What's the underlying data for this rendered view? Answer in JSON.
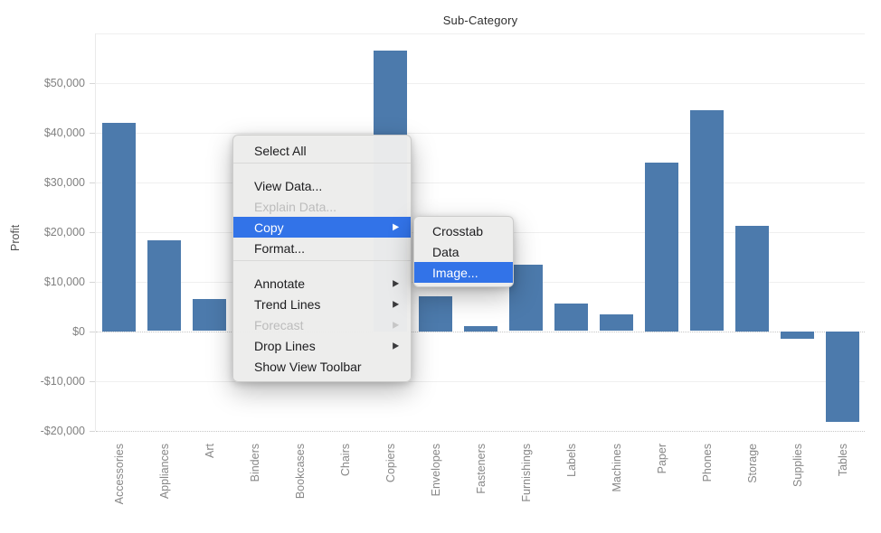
{
  "chart": {
    "title": "Sub-Category",
    "y_axis_label": "Profit",
    "bar_color": "#4c7aac",
    "y_tick_values": [
      50000,
      40000,
      30000,
      20000,
      10000,
      0,
      -10000,
      -20000
    ],
    "y_tick_labels": [
      "$50,000",
      "$40,000",
      "$30,000",
      "$20,000",
      "$10,000",
      "$0",
      "-$10,000",
      "-$20,000"
    ]
  },
  "chart_data": {
    "type": "bar",
    "title": "Sub-Category",
    "xlabel": "",
    "ylabel": "Profit",
    "categories": [
      "Accessories",
      "Appliances",
      "Art",
      "Binders",
      "Bookcases",
      "Chairs",
      "Copiers",
      "Envelopes",
      "Fasteners",
      "Furnishings",
      "Labels",
      "Machines",
      "Paper",
      "Phones",
      "Storage",
      "Supplies",
      "Tables"
    ],
    "values": [
      42000,
      18200,
      6400,
      null,
      null,
      null,
      56500,
      7000,
      1000,
      13300,
      5500,
      3300,
      34000,
      44400,
      21200,
      -1500,
      -18200
    ],
    "ylim": [
      -20000,
      60000
    ],
    "gridlines": "horizontal every 10000, zero line and -20000 dotted",
    "legend": "none",
    "occluded_categories_note": "Bars for Binders, Bookcases and Chairs are hidden behind the open context menu"
  },
  "context_menu": {
    "highlight_color": "#3273e8",
    "items": [
      {
        "label": "Select All",
        "type": "item"
      },
      {
        "type": "separator"
      },
      {
        "label": "View Data...",
        "type": "item"
      },
      {
        "label": "Explain Data...",
        "type": "item",
        "disabled": true
      },
      {
        "label": "Copy",
        "type": "item",
        "submenu_arrow": true,
        "highlighted": true
      },
      {
        "label": "Format...",
        "type": "item"
      },
      {
        "type": "separator"
      },
      {
        "label": "Annotate",
        "type": "item",
        "submenu_arrow": true
      },
      {
        "label": "Trend Lines",
        "type": "item",
        "submenu_arrow": true
      },
      {
        "label": "Forecast",
        "type": "item",
        "submenu_arrow": true,
        "disabled": true
      },
      {
        "label": "Drop Lines",
        "type": "item",
        "submenu_arrow": true
      },
      {
        "label": "Show View Toolbar",
        "type": "item"
      }
    ]
  },
  "copy_submenu": {
    "items": [
      {
        "label": "Crosstab",
        "type": "item"
      },
      {
        "label": "Data",
        "type": "item"
      },
      {
        "label": "Image...",
        "type": "item",
        "highlighted": true
      }
    ]
  }
}
